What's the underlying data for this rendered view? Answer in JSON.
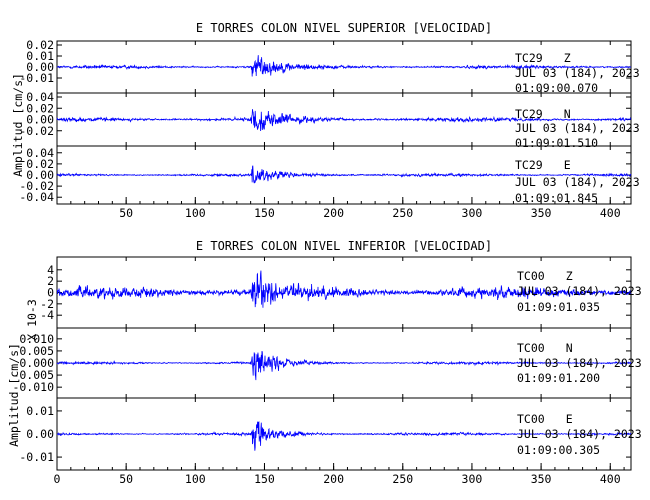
{
  "chart_data": [
    {
      "type": "line",
      "title": "E TORRES COLON NIVEL SUPERIOR [VELOCIDAD]",
      "ylabel": "Amplitud [cm/s]",
      "xlim": [
        0,
        415
      ],
      "x_ticks": [
        "50",
        "100",
        "150",
        "200",
        "250",
        "300",
        "350",
        "400"
      ],
      "channels": [
        {
          "station": "TC29",
          "component": "Z",
          "date": "JUL 03 (184), 2023",
          "time": "01:09:00.070",
          "ylim": [
            -0.02,
            0.02
          ],
          "y_ticks": [
            "0.02",
            "0.01",
            "0.00",
            "-0.01"
          ],
          "waveform": {
            "event_x": 141,
            "peak_amplitude": 0.018,
            "noise_amplitude": 0.0017,
            "coda_decay_s": 16
          }
        },
        {
          "station": "TC29",
          "component": "N",
          "date": "JUL 03 (184), 2023",
          "time": "01:09:01.510",
          "ylim": [
            -0.04,
            0.04
          ],
          "y_ticks": [
            "0.04",
            "0.02",
            "0.00",
            "-0.02"
          ],
          "waveform": {
            "event_x": 141,
            "peak_amplitude": 0.03,
            "noise_amplitude": 0.004,
            "coda_decay_s": 18
          }
        },
        {
          "station": "TC29",
          "component": "E",
          "date": "JUL 03 (184), 2023",
          "time": "01:09:01.845",
          "ylim": [
            -0.045,
            0.045
          ],
          "y_ticks": [
            "0.04",
            "0.02",
            "0.00",
            "-0.02",
            "-0.04"
          ],
          "waveform": {
            "event_x": 141,
            "peak_amplitude": 0.022,
            "noise_amplitude": 0.0028,
            "coda_decay_s": 18
          }
        }
      ],
      "line_color": "#0000ff"
    },
    {
      "type": "line",
      "title": "E TORRES COLON NIVEL INFERIOR [VELOCIDAD]",
      "ylabel": "Amplitud [cm/s]",
      "scale_note": "X 10-3",
      "xlim": [
        0,
        415
      ],
      "x_ticks": [
        "0",
        "50",
        "100",
        "150",
        "200",
        "250",
        "300",
        "350",
        "400"
      ],
      "channels": [
        {
          "station": "TC00",
          "component": "Z",
          "date": "JUL 03 (184), 2023",
          "time": "01:09:01.035",
          "ylim": [
            -5.2,
            5.2
          ],
          "y_ticks": [
            "4",
            "2",
            "0",
            "-2",
            "-4"
          ],
          "waveform": {
            "event_x": 141,
            "peak_amplitude": 4.6,
            "noise_amplitude": 1.2,
            "coda_decay_s": 14
          }
        },
        {
          "station": "TC00",
          "component": "N",
          "date": "JUL 03 (184), 2023",
          "time": "01:09:01.200",
          "ylim": [
            -0.012,
            0.012
          ],
          "y_ticks": [
            "0.010",
            "0.005",
            "0.000",
            "-0.005",
            "-0.010"
          ],
          "waveform": {
            "event_x": 141,
            "peak_amplitude": 0.0108,
            "noise_amplitude": 0.0006,
            "coda_decay_s": 14
          }
        },
        {
          "station": "TC00",
          "component": "E",
          "date": "JUL 03 (184), 2023",
          "time": "01:09:00.305",
          "ylim": [
            -0.013,
            0.013
          ],
          "y_ticks": [
            "0.01",
            "0.00",
            "-0.01"
          ],
          "waveform": {
            "event_x": 141,
            "peak_amplitude": 0.0095,
            "noise_amplitude": 0.0006,
            "coda_decay_s": 14
          }
        }
      ],
      "line_color": "#0000ff"
    }
  ]
}
